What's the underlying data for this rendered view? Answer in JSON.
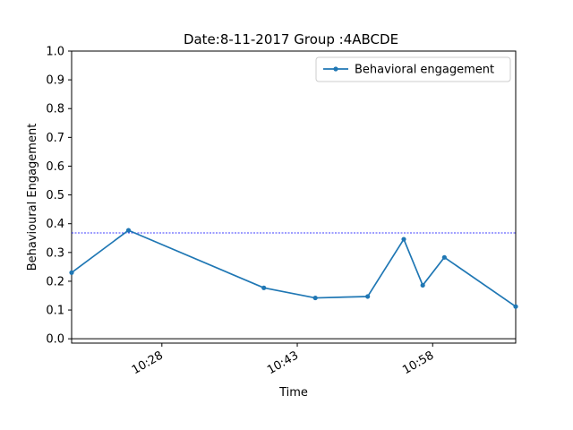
{
  "chart_data": {
    "type": "line",
    "title": "Date:8-11-2017 Group :4ABCDE",
    "xlabel": "Time",
    "ylabel": "Behavioural Engagement",
    "x_tick_labels": [
      "10:28",
      "10:43",
      "10:58"
    ],
    "x_tick_minutes": [
      628,
      643,
      658
    ],
    "xlim_minutes": [
      618.0,
      667.2
    ],
    "ylim": [
      -0.015,
      1.0
    ],
    "y_ticks": [
      "0.0",
      "0.1",
      "0.2",
      "0.3",
      "0.4",
      "0.5",
      "0.6",
      "0.7",
      "0.8",
      "0.9",
      "1.0"
    ],
    "y_tick_values": [
      0,
      0.1,
      0.2,
      0.3,
      0.4,
      0.5,
      0.6,
      0.7,
      0.8,
      0.9,
      1.0
    ],
    "series": [
      {
        "name": "Behavioral engagement",
        "color": "#1f77b4",
        "x_minutes": [
          618.0,
          624.3,
          639.3,
          645.0,
          650.8,
          654.8,
          656.9,
          659.3,
          667.2
        ],
        "values": [
          0.23,
          0.377,
          0.177,
          0.142,
          0.147,
          0.346,
          0.186,
          0.283,
          0.112
        ]
      }
    ],
    "reference_line": {
      "value": 0.368,
      "color": "#0000ff",
      "style": "dashed"
    },
    "grid": false,
    "legend_position": "top-right"
  }
}
